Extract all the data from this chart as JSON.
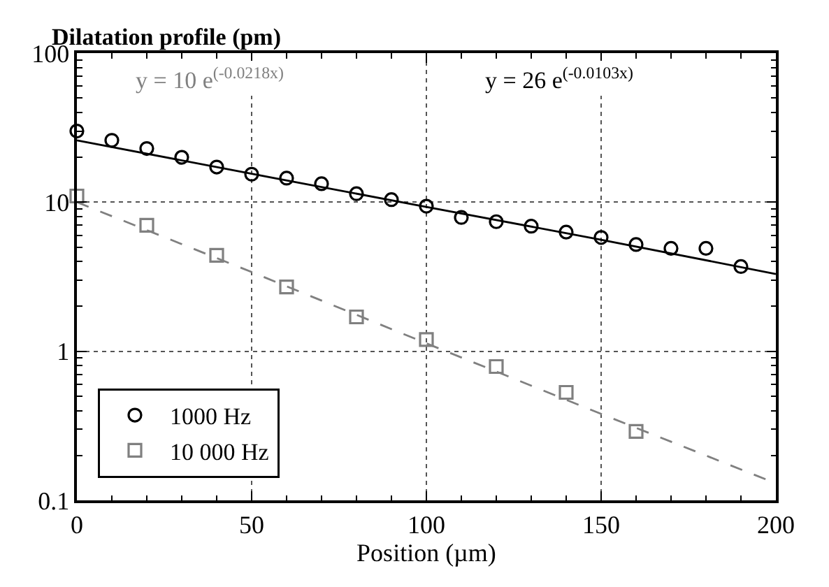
{
  "chart_data": {
    "type": "scatter",
    "ylabel": "Dilatation profile (pm)",
    "xlabel": "Position (µm)",
    "x": [
      0,
      10,
      20,
      30,
      40,
      50,
      60,
      70,
      80,
      90,
      100,
      110,
      120,
      130,
      140,
      150,
      160,
      170,
      180,
      190
    ],
    "series": [
      {
        "name": "1000 Hz",
        "color": "#000000",
        "marker": "circle",
        "values": [
          30,
          26,
          22.9,
          20,
          17.2,
          15.4,
          14.5,
          13.3,
          11.4,
          10.4,
          9.4,
          7.9,
          7.4,
          6.9,
          6.3,
          5.8,
          5.2,
          4.9,
          4.9,
          3.7
        ]
      },
      {
        "name": "10 000 Hz",
        "color": "#808080",
        "marker": "square",
        "x": [
          0,
          20,
          40,
          60,
          80,
          100,
          120,
          140,
          160
        ],
        "values": [
          11,
          7,
          4.4,
          2.7,
          1.7,
          1.2,
          0.79,
          0.53,
          0.29
        ]
      },
      {
        "type": "line",
        "color": "#808080",
        "line_style": "dashed",
        "x": [
          0,
          50,
          100,
          150,
          200
        ],
        "values": [
          10,
          3.4,
          1.13,
          0.38,
          0.13
        ]
      },
      {
        "type": "line",
        "color": "#000000",
        "line_style": "solid",
        "x": [
          0,
          50,
          100,
          150,
          200
        ],
        "values": [
          26,
          15.5,
          9.3,
          5.6,
          3.3
        ]
      }
    ],
    "annotations": [
      "y = 10 e$^{(-0.0218x)}$",
      "y = 26 e$^{(-0.0103x)}$"
    ],
    "xlim": [
      0,
      200
    ],
    "xticks": [
      0,
      50,
      100,
      150,
      200
    ],
    "ylim": [
      0.1,
      100
    ],
    "yticks": [
      0.1,
      1,
      10,
      100
    ],
    "log": true,
    "grid": true,
    "legend": "bottom left"
  }
}
